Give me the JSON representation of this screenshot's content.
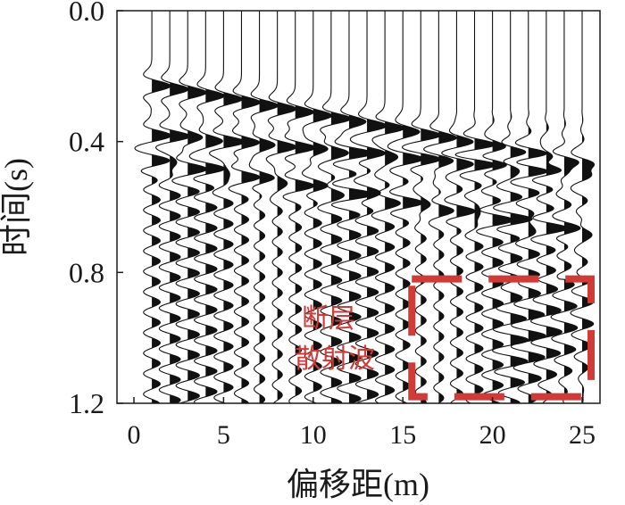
{
  "chart_data": {
    "type": "line",
    "xlabel": "偏移距(m)",
    "ylabel": "时间(s)",
    "xlim": [
      -1,
      26
    ],
    "ylim": [
      0,
      1.2
    ],
    "y_inverted": true,
    "x_ticks": [
      0,
      5,
      10,
      15,
      20,
      25
    ],
    "x_tick_labels": [
      "0",
      "5",
      "10",
      "15",
      "20",
      "25"
    ],
    "y_ticks": [
      0,
      0.4,
      0.8,
      1.2
    ],
    "y_tick_labels": [
      "0.0",
      "0.4",
      "0.8",
      "1.2"
    ],
    "trace_offsets": [
      1,
      2,
      3,
      4,
      5,
      6,
      7,
      8,
      9,
      10,
      11,
      12,
      13,
      14,
      15,
      16,
      17,
      18,
      19,
      20,
      21,
      22,
      23,
      24,
      25
    ],
    "events": [
      {
        "name": "reflection_1",
        "t_at_offset_1": 0.23,
        "t_at_offset_25": 0.47
      },
      {
        "name": "reflection_2",
        "t_at_offset_1": 0.38,
        "t_at_offset_25": 0.5
      },
      {
        "name": "reflection_3",
        "t_at_offset_1": 0.46,
        "t_at_offset_25": 0.68
      }
    ],
    "annotation": {
      "lines": [
        "断层",
        "散射波"
      ],
      "color": "#d03a37",
      "box_x_range": [
        15.5,
        25.5
      ],
      "box_y_range": [
        0.82,
        1.18
      ]
    },
    "grid": false
  }
}
